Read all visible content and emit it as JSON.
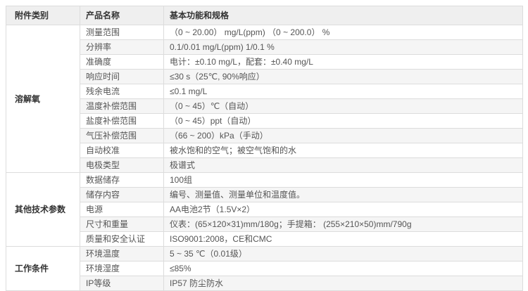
{
  "table": {
    "headers": [
      "附件类别",
      "产品名称",
      "基本功能和规格"
    ],
    "colors": {
      "header_bg": "#efefef",
      "stripe_bg": "#f5f5f5",
      "border": "#dcdcdc",
      "text": "#555555",
      "heading_text": "#333333"
    },
    "sections": [
      {
        "category": "溶解氧",
        "rows": [
          [
            "测量范围",
            "（0 ~ 20.00） mg/L(ppm) （0 ~ 200.0） %"
          ],
          [
            "分辨率",
            "0.1/0.01 mg/L(ppm) 1/0.1 %"
          ],
          [
            "准确度",
            "电计：±0.10 mg/L，配套：±0.40 mg/L"
          ],
          [
            "响应时间",
            "≤30 s（25℃, 90%响应）"
          ],
          [
            "残余电流",
            "≤0.1 mg/L"
          ],
          [
            "温度补偿范围",
            "（0 ~ 45）℃（自动）"
          ],
          [
            "盐度补偿范围",
            "（0 ~ 45）ppt（自动）"
          ],
          [
            "气压补偿范围",
            "（66 ~ 200）kPa（手动）"
          ],
          [
            "自动校准",
            "被水饱和的空气；被空气饱和的水"
          ],
          [
            "电极类型",
            "极谱式"
          ]
        ]
      },
      {
        "category": "其他技术参数",
        "rows": [
          [
            "数据储存",
            "100组"
          ],
          [
            "储存内容",
            "编号、测量值、测量单位和温度值。"
          ],
          [
            "电源",
            "AA电池2节（1.5V×2）"
          ],
          [
            "尺寸和重量",
            "仪表：(65×120×31)mm/180g；手提箱： (255×210×50)mm/790g"
          ],
          [
            "质量和安全认证",
            "ISO9001:2008，CE和CMC"
          ]
        ]
      },
      {
        "category": "工作条件",
        "rows": [
          [
            "环境温度",
            "5 ~ 35 ℃（0.01级）"
          ],
          [
            "环境湿度",
            "≤85%"
          ],
          [
            "IP等级",
            "IP57 防尘防水"
          ]
        ]
      }
    ]
  }
}
